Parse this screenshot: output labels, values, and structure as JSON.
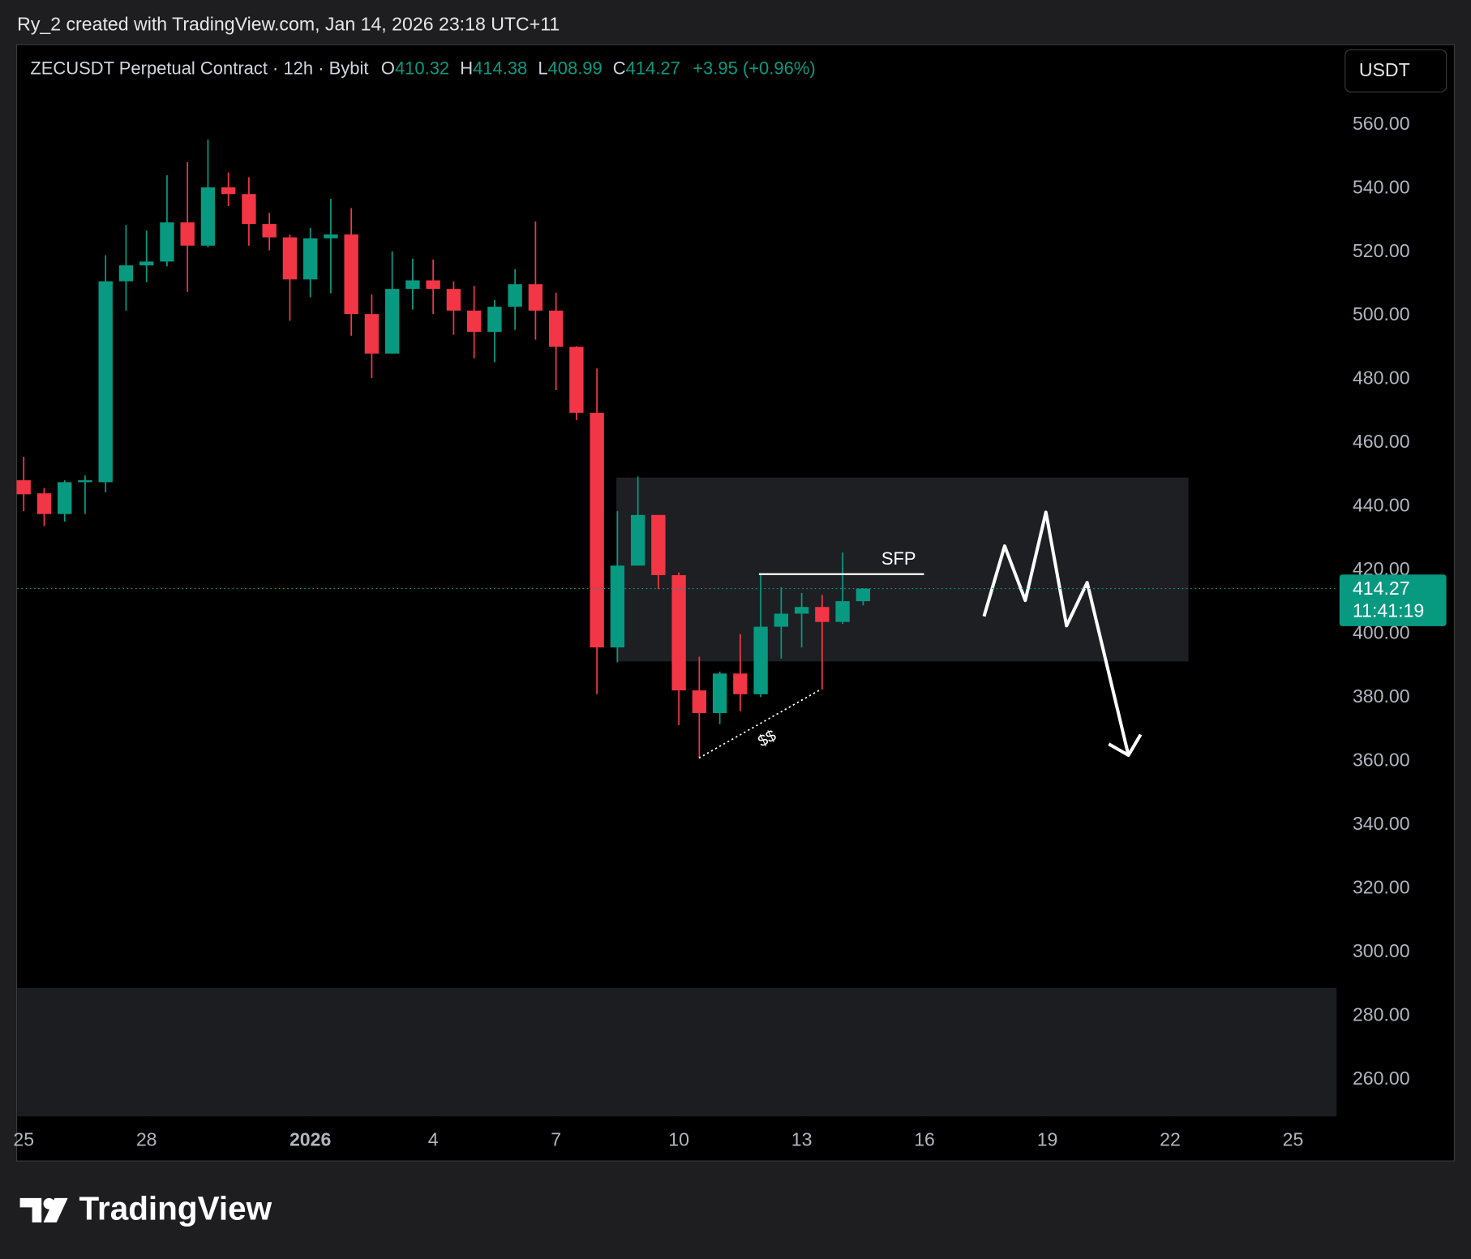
{
  "header": {
    "title": "Ry_2 created with TradingView.com, Jan 14, 2026 23:18 UTC+11"
  },
  "chart_data": {
    "type": "candlestick",
    "symbol": "ZECUSDT Perpetual Contract · 12h · Bybit",
    "legend": {
      "open_label": "O",
      "open": 410.32,
      "high_label": "H",
      "high": 414.38,
      "low_label": "L",
      "low": 408.99,
      "close_label": "C",
      "close": 414.27,
      "change": "+3.95 (+0.96%)"
    },
    "currency": "USDT",
    "categories": [
      null,
      null,
      null,
      null,
      null,
      null,
      null,
      null,
      null,
      null,
      null,
      null,
      null,
      null,
      null,
      null,
      null,
      null,
      null,
      null,
      null,
      null,
      null,
      null,
      null,
      null,
      null,
      null,
      null,
      null,
      null,
      null,
      null,
      null,
      null,
      null,
      null,
      null,
      null,
      null,
      null,
      null
    ],
    "open": [
      448.3,
      444.2,
      437.7,
      447.7,
      447.7,
      510.8,
      515.8,
      517.0,
      529.3,
      522.0,
      540.3,
      538.2,
      528.8,
      524.6,
      511.4,
      524.3,
      525.5,
      500.5,
      488.1,
      508.4,
      511.1,
      508.4,
      501.6,
      494.9,
      502.8,
      509.9,
      501.6,
      490.2,
      469.5,
      395.8,
      421.5,
      437.4,
      418.5,
      382.3,
      375.2,
      387.6,
      381.1,
      402.3,
      406.4,
      408.5,
      403.8,
      410.32
    ],
    "high": [
      455.7,
      445.9,
      448.3,
      449.8,
      519.0,
      528.5,
      526.7,
      544.1,
      548.2,
      555.3,
      545.0,
      543.5,
      532.3,
      525.5,
      527.6,
      536.7,
      533.8,
      506.7,
      520.2,
      517.9,
      517.6,
      510.8,
      509.3,
      504.9,
      514.6,
      529.6,
      507.2,
      490.4,
      483.4,
      438.6,
      449.5,
      437.4,
      419.4,
      392.9,
      388.2,
      400.0,
      418.8,
      414.7,
      412.9,
      412.3,
      425.6,
      414.38
    ],
    "low": [
      438.6,
      433.9,
      435.3,
      437.7,
      444.5,
      501.6,
      510.5,
      515.5,
      507.5,
      521.4,
      534.4,
      522.0,
      520.5,
      498.4,
      505.8,
      507.0,
      493.7,
      480.4,
      488.1,
      501.9,
      500.5,
      494.0,
      486.6,
      485.4,
      495.5,
      492.5,
      476.6,
      467.2,
      381.1,
      391.1,
      421.5,
      414.1,
      371.4,
      361.1,
      371.7,
      375.8,
      380.2,
      392.3,
      395.8,
      382.6,
      403.2,
      408.99
    ],
    "close": [
      443.9,
      437.7,
      447.7,
      448.3,
      510.8,
      515.8,
      517.0,
      529.3,
      522.0,
      540.3,
      538.2,
      528.8,
      524.6,
      511.4,
      524.3,
      525.5,
      500.5,
      488.1,
      508.4,
      511.1,
      508.4,
      501.6,
      494.9,
      502.8,
      509.9,
      501.6,
      490.2,
      469.5,
      395.8,
      421.5,
      437.4,
      418.5,
      382.3,
      375.2,
      387.6,
      381.1,
      402.3,
      406.4,
      408.5,
      403.8,
      410.32,
      414.27
    ],
    "up_color": "#089981",
    "down_color": "#f23645",
    "last_price": 414.27,
    "countdown": "11:41:19",
    "xlim": [
      -0.32,
      64.13
    ],
    "xticks": [
      {
        "value": 0,
        "label": "25"
      },
      {
        "value": 6,
        "label": "28"
      },
      {
        "value": 14,
        "label": "2026"
      },
      {
        "value": 20,
        "label": "4"
      },
      {
        "value": 26,
        "label": "7"
      },
      {
        "value": 32,
        "label": "10"
      },
      {
        "value": 38,
        "label": "13"
      },
      {
        "value": 44,
        "label": "16"
      },
      {
        "value": 50,
        "label": "19"
      },
      {
        "value": 56,
        "label": "22"
      },
      {
        "value": 62,
        "label": "25"
      }
    ],
    "ylim": [
      248.5,
      585.3
    ],
    "yticks": [
      {
        "value": 260,
        "label": "260.00"
      },
      {
        "value": 280,
        "label": "280.00"
      },
      {
        "value": 300,
        "label": "300.00"
      },
      {
        "value": 320,
        "label": "320.00"
      },
      {
        "value": 340,
        "label": "340.00"
      },
      {
        "value": 360,
        "label": "360.00"
      },
      {
        "value": 380,
        "label": "380.00"
      },
      {
        "value": 400,
        "label": "400.00"
      },
      {
        "value": 420,
        "label": "420.00"
      },
      {
        "value": 440,
        "label": "440.00"
      },
      {
        "value": 460,
        "label": "460.00"
      },
      {
        "value": 480,
        "label": "480.00"
      },
      {
        "value": 500,
        "label": "500.00"
      },
      {
        "value": 520,
        "label": "520.00"
      },
      {
        "value": 540,
        "label": "540.00"
      },
      {
        "value": 560,
        "label": "560.00"
      }
    ],
    "annotations": {
      "sfp": "SFP",
      "liquidity": "$$"
    }
  },
  "footer": {
    "brand": "TradingView"
  }
}
